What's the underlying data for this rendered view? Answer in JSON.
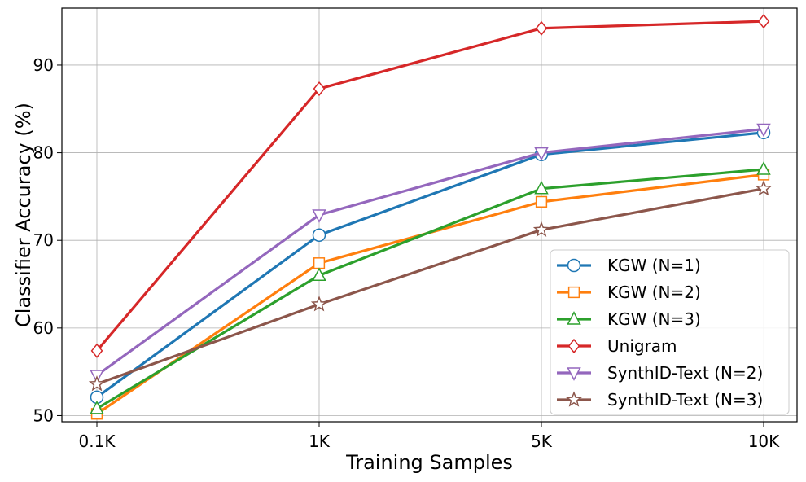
{
  "chart_data": {
    "type": "line",
    "title": "",
    "xlabel": "Training Samples",
    "ylabel": "Classifier Accuracy (%)",
    "categories": [
      "0.1K",
      "1K",
      "5K",
      "10K"
    ],
    "ylim": [
      49.3,
      96.5
    ],
    "yticks": [
      50,
      60,
      70,
      80,
      90
    ],
    "grid": true,
    "legend_position": "lower-right",
    "series": [
      {
        "name": "KGW (N=1)",
        "color": "#1f77b4",
        "marker": "circle",
        "values": [
          52.1,
          70.6,
          79.8,
          82.3
        ]
      },
      {
        "name": "KGW (N=2)",
        "color": "#ff7f0e",
        "marker": "square",
        "values": [
          50.2,
          67.4,
          74.4,
          77.5
        ]
      },
      {
        "name": "KGW (N=3)",
        "color": "#2ca02c",
        "marker": "triangle-up",
        "values": [
          50.8,
          66.0,
          75.9,
          78.1
        ]
      },
      {
        "name": "Unigram",
        "color": "#d62728",
        "marker": "diamond",
        "values": [
          57.4,
          87.3,
          94.2,
          95.0
        ]
      },
      {
        "name": "SynthID-Text (N=2)",
        "color": "#9467bd",
        "marker": "triangle-down",
        "values": [
          54.6,
          72.9,
          80.0,
          82.7
        ]
      },
      {
        "name": "SynthID-Text (N=3)",
        "color": "#8c564b",
        "marker": "star",
        "values": [
          53.6,
          62.7,
          71.2,
          75.9
        ]
      }
    ]
  }
}
